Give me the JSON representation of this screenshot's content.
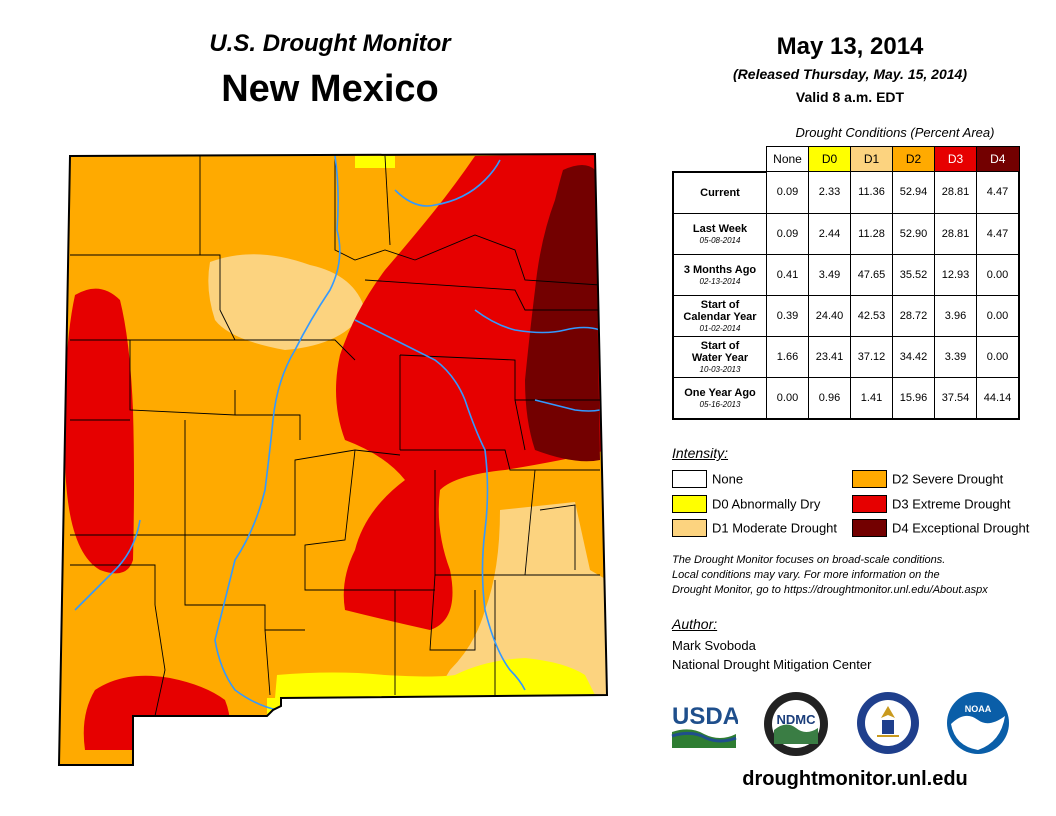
{
  "header": {
    "subtitle": "U.S. Drought Monitor",
    "state": "New Mexico",
    "date": "May 13, 2014",
    "released": "(Released Thursday, May. 15, 2014)",
    "valid": "Valid 8 a.m. EDT"
  },
  "table": {
    "caption": "Drought Conditions (Percent Area)",
    "columns": [
      "None",
      "D0",
      "D1",
      "D2",
      "D3",
      "D4"
    ],
    "column_colors": [
      "#ffffff",
      "#ffff00",
      "#fcd37f",
      "#ffaa00",
      "#e60000",
      "#730000"
    ],
    "column_text_colors": [
      "#000000",
      "#000000",
      "#000000",
      "#000000",
      "#ffffff",
      "#ffffff"
    ],
    "rows": [
      {
        "label": "Current",
        "sublabel": "",
        "values": [
          "0.09",
          "2.33",
          "11.36",
          "52.94",
          "28.81",
          "4.47"
        ]
      },
      {
        "label": "Last Week",
        "sublabel": "05-08-2014",
        "values": [
          "0.09",
          "2.44",
          "11.28",
          "52.90",
          "28.81",
          "4.47"
        ]
      },
      {
        "label": "3 Months Ago",
        "sublabel": "02-13-2014",
        "values": [
          "0.41",
          "3.49",
          "47.65",
          "35.52",
          "12.93",
          "0.00"
        ]
      },
      {
        "label": "Start of Calendar Year",
        "sublabel": "01-02-2014",
        "values": [
          "0.39",
          "24.40",
          "42.53",
          "28.72",
          "3.96",
          "0.00"
        ]
      },
      {
        "label": "Start of Water Year",
        "sublabel": "10-03-2013",
        "values": [
          "1.66",
          "23.41",
          "37.12",
          "34.42",
          "3.39",
          "0.00"
        ]
      },
      {
        "label": "One Year Ago",
        "sublabel": "05-16-2013",
        "values": [
          "0.00",
          "0.96",
          "1.41",
          "15.96",
          "37.54",
          "44.14"
        ]
      }
    ]
  },
  "legend": {
    "heading": "Intensity:",
    "items": [
      {
        "label": "None",
        "color": "#ffffff"
      },
      {
        "label": "D0 Abnormally Dry",
        "color": "#ffff00"
      },
      {
        "label": "D1 Moderate Drought",
        "color": "#fcd37f"
      },
      {
        "label": "D2 Severe Drought",
        "color": "#ffaa00"
      },
      {
        "label": "D3 Extreme Drought",
        "color": "#e60000"
      },
      {
        "label": "D4 Exceptional Drought",
        "color": "#730000"
      }
    ]
  },
  "note": {
    "line1": "The Drought Monitor focuses on broad-scale conditions.",
    "line2": "Local conditions may vary. For more information on the",
    "line3": "Drought Monitor, go to https://droughtmonitor.unl.edu/About.aspx"
  },
  "author": {
    "heading": "Author:",
    "name": "Mark Svoboda",
    "org": "National Drought Mitigation Center"
  },
  "logos": {
    "usda": "USDA",
    "ndmc": "NDMC",
    "noaa": "NOAA"
  },
  "website": "droughtmonitor.unl.edu",
  "colors": {
    "d0": "#ffff00",
    "d1": "#fcd37f",
    "d2": "#ffaa00",
    "d3": "#e60000",
    "d4": "#730000",
    "river": "#3399ff",
    "county": "#000000"
  }
}
